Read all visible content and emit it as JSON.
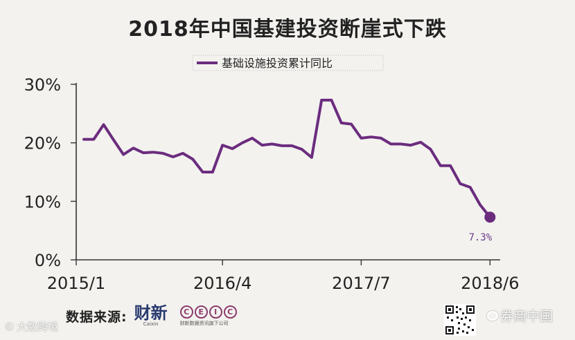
{
  "chart_data": {
    "type": "line",
    "title": "2018年中国基建投资断崖式下跌",
    "series": [
      {
        "name": "基础设施投资累计同比",
        "color": "#6b2c7e",
        "values": [
          20.6,
          20.6,
          23.1,
          20.5,
          18.0,
          19.1,
          18.3,
          18.4,
          18.2,
          17.6,
          18.2,
          17.2,
          15.0,
          15.0,
          19.6,
          19.0,
          20.0,
          20.8,
          19.6,
          19.8,
          19.5,
          19.5,
          18.9,
          17.5,
          27.3,
          27.3,
          23.4,
          23.2,
          20.8,
          21.0,
          20.8,
          19.8,
          19.8,
          19.6,
          20.1,
          18.9,
          16.1,
          16.1,
          13.0,
          12.4,
          9.4,
          7.3
        ]
      }
    ],
    "x_tick_labels": [
      "2015/1",
      "2016/4",
      "2017/7",
      "2018/6"
    ],
    "x_tick_indices": [
      0,
      14,
      28,
      41
    ],
    "y_tick_labels": [
      "0%",
      "10%",
      "20%",
      "30%"
    ],
    "y_tick_values": [
      0,
      10,
      20,
      30
    ],
    "ylim": [
      0,
      30
    ],
    "annotation": {
      "text": "7.3%",
      "index": 41
    },
    "grid": false,
    "legend_position": "top-center"
  },
  "footer": {
    "source_label": "数据来源:",
    "caixin_logo": "财新",
    "caixin_logo_sub": "Caixin",
    "ceic_letters": [
      "C",
      "E",
      "I",
      "C"
    ],
    "ceic_logo_sub": "财新数据资讯旗下公司"
  },
  "watermarks": {
    "left": "大数跨境",
    "left_symbol": "©",
    "right": "券商中国"
  },
  "colors": {
    "background": "#f3f2ef",
    "series": "#6b2c7e",
    "axis": "#333333"
  }
}
